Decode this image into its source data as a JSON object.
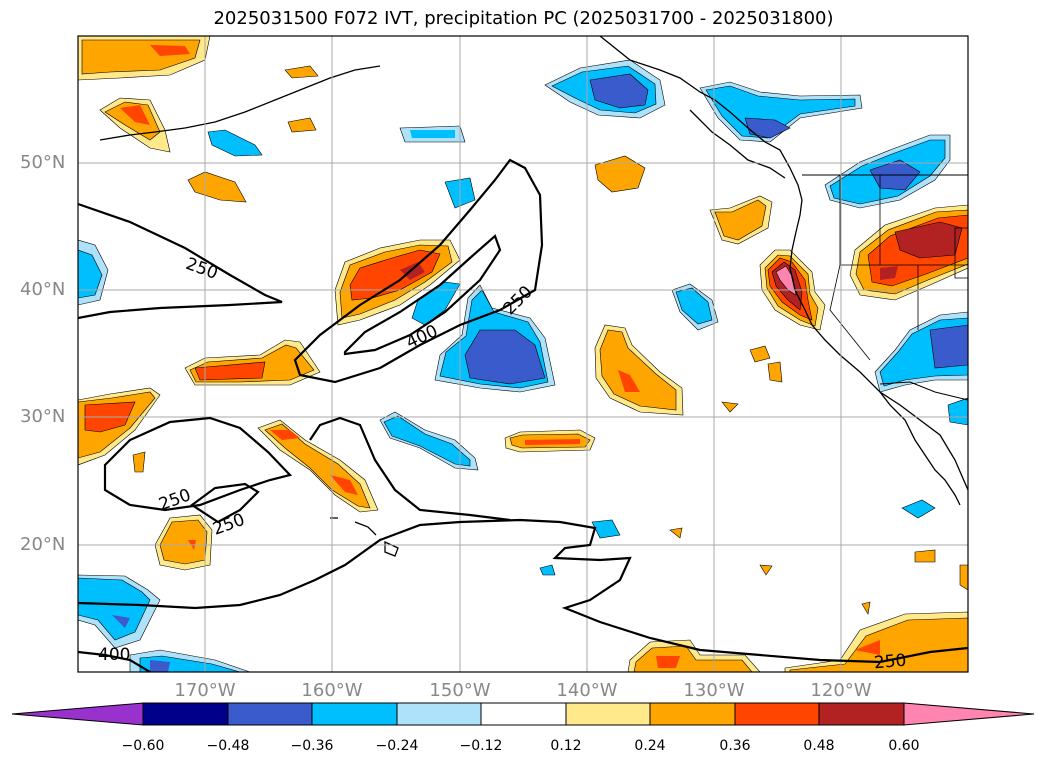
{
  "title": "2025031500 F072 IVT, precipitation PC (2025031700 - 2025031800)",
  "lat_labels": [
    "50°N",
    "40°N",
    "30°N",
    "20°N"
  ],
  "lon_labels": [
    "170°W",
    "160°W",
    "150°W",
    "140°W",
    "130°W",
    "120°W"
  ],
  "contour_labels": [
    "250",
    "400",
    "250",
    "250",
    "250",
    "400",
    "250"
  ],
  "colorbar": {
    "ticks": [
      "−0.60",
      "−0.48",
      "−0.36",
      "−0.24",
      "−0.12",
      "0.12",
      "0.24",
      "0.36",
      "0.48",
      "0.60"
    ],
    "colors": [
      "#9932cc",
      "#00008b",
      "#3a5bcc",
      "#00bfff",
      "#aee2fb",
      "#ffffff",
      "#ffe98a",
      "#ffa500",
      "#ff4500",
      "#b22222",
      "#ff85b0"
    ]
  },
  "colors": {
    "neg_strong": "#3a5bcc",
    "neg_mid": "#00bfff",
    "neg_weak": "#aee2fb",
    "pos_weak": "#ffe98a",
    "pos_mid": "#ffa500",
    "pos_strong": "#ff4500",
    "pos_vstrong": "#b22222",
    "pos_max": "#ff85b0"
  }
}
